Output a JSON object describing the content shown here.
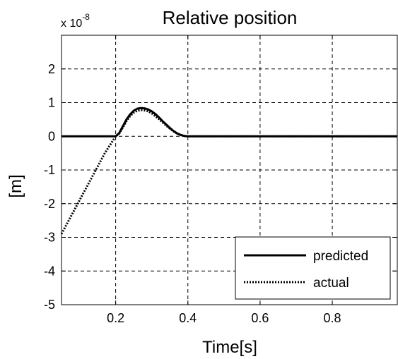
{
  "chart_data": {
    "type": "line",
    "title": "Relative position",
    "xlabel": "Time[s]",
    "ylabel": "[m]",
    "y_exponent_base": "x 10",
    "y_exponent_power": "-8",
    "xlim": [
      0.05,
      0.98
    ],
    "ylim": [
      -5,
      3
    ],
    "x_ticks": [
      0.2,
      0.4,
      0.6,
      0.8
    ],
    "x_tick_labels": [
      "0.2",
      "0.4",
      "0.6",
      "0.8"
    ],
    "y_ticks": [
      -5,
      -4,
      -3,
      -2,
      -1,
      0,
      1,
      2
    ],
    "y_tick_labels": [
      "-5",
      "-4",
      "-3",
      "-2",
      "-1",
      "0",
      "1",
      "2"
    ],
    "grid": true,
    "legend_position": "bottom-right",
    "series": [
      {
        "name": "predicted",
        "style": "solid",
        "color": "#000000",
        "x": [
          0.05,
          0.1,
          0.15,
          0.19,
          0.2,
          0.21,
          0.22,
          0.23,
          0.24,
          0.25,
          0.26,
          0.27,
          0.28,
          0.29,
          0.3,
          0.31,
          0.32,
          0.33,
          0.34,
          0.35,
          0.36,
          0.37,
          0.38,
          0.39,
          0.4,
          0.5,
          0.6,
          0.7,
          0.8,
          0.9,
          0.98
        ],
        "y": [
          0,
          0,
          0,
          0,
          0,
          0.1,
          0.3,
          0.5,
          0.65,
          0.76,
          0.82,
          0.84,
          0.83,
          0.8,
          0.74,
          0.66,
          0.56,
          0.45,
          0.35,
          0.25,
          0.16,
          0.09,
          0.04,
          0.01,
          0,
          0,
          0,
          0,
          0,
          0,
          0
        ]
      },
      {
        "name": "actual",
        "style": "dotted",
        "color": "#000000",
        "x": [
          0.05,
          0.08,
          0.11,
          0.14,
          0.17,
          0.2,
          0.21,
          0.22,
          0.23,
          0.24,
          0.25,
          0.26,
          0.27,
          0.28,
          0.29,
          0.3,
          0.31,
          0.32,
          0.33,
          0.34,
          0.35,
          0.36,
          0.37,
          0.38,
          0.39,
          0.4,
          0.5,
          0.6,
          0.7,
          0.8,
          0.9,
          0.98
        ],
        "y": [
          -2.9,
          -2.3,
          -1.7,
          -1.1,
          -0.5,
          0,
          0.08,
          0.26,
          0.45,
          0.6,
          0.7,
          0.76,
          0.78,
          0.77,
          0.74,
          0.68,
          0.6,
          0.51,
          0.41,
          0.32,
          0.23,
          0.15,
          0.08,
          0.04,
          0.01,
          0,
          0,
          0,
          0,
          0,
          0,
          0
        ]
      }
    ]
  }
}
